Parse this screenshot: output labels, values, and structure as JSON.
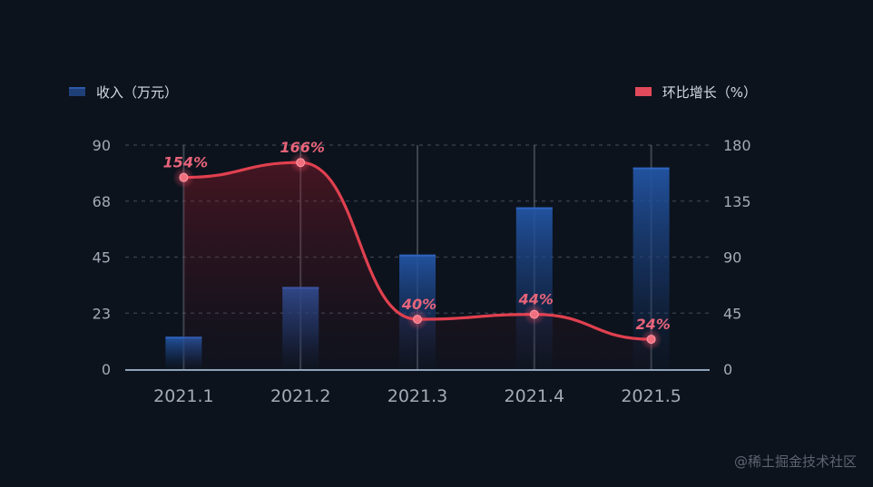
{
  "chart_data": {
    "type": "bar",
    "categories": [
      "2021.1",
      "2021.2",
      "2021.3",
      "2021.4",
      "2021.5"
    ],
    "series": [
      {
        "name": "收入（万元）",
        "type": "bar",
        "axis": "left",
        "values": [
          13,
          33,
          46,
          65,
          81
        ]
      },
      {
        "name": "环比增长（%）",
        "type": "line",
        "axis": "right",
        "values": [
          154,
          166,
          40,
          44,
          24
        ]
      }
    ],
    "data_labels": [
      "154%",
      "166%",
      "40%",
      "44%",
      "24%"
    ],
    "y_left": {
      "ylim": [
        0,
        90
      ],
      "ticks": [
        "0",
        "23",
        "45",
        "68",
        "90"
      ]
    },
    "y_right": {
      "ylim": [
        0,
        180
      ],
      "ticks": [
        "0",
        "45",
        "90",
        "135",
        "180"
      ]
    },
    "grid": "dashed horizontal",
    "legend_placement": "top",
    "colors": {
      "bar": "#2a5ab0",
      "line": "#e0404f",
      "label": "#e8647a",
      "axis_text": "#a3abb6"
    }
  },
  "watermark": "@稀土掘金技术社区"
}
